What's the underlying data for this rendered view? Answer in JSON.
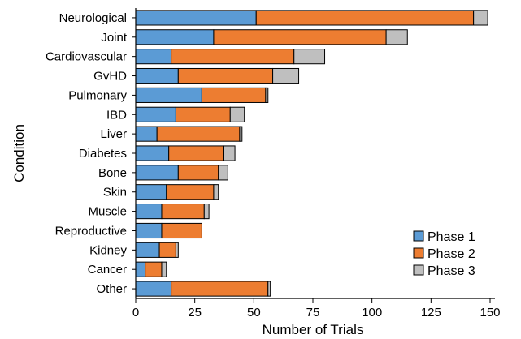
{
  "chart_data": {
    "type": "bar",
    "orientation": "horizontal",
    "stacked": true,
    "xlabel": "Number of Trials",
    "ylabel": "Condition",
    "xlim": [
      0,
      150
    ],
    "xticks": [
      0,
      25,
      50,
      75,
      100,
      125,
      150
    ],
    "grid": false,
    "legend_position": "bottom-right",
    "categories": [
      "Neurological",
      "Joint",
      "Cardiovascular",
      "GvHD",
      "Pulmonary",
      "IBD",
      "Liver",
      "Diabetes",
      "Bone",
      "Skin",
      "Muscle",
      "Reproductive",
      "Kidney",
      "Cancer",
      "Other"
    ],
    "series": [
      {
        "name": "Phase 1",
        "color": "#5b9bd5",
        "values": [
          51,
          33,
          15,
          18,
          28,
          17,
          9,
          14,
          18,
          13,
          11,
          11,
          10,
          4,
          15
        ]
      },
      {
        "name": "Phase 2",
        "color": "#ed7d31",
        "values": [
          92,
          73,
          52,
          40,
          27,
          23,
          35,
          23,
          17,
          20,
          18,
          17,
          7,
          7,
          41
        ]
      },
      {
        "name": "Phase 3",
        "color": "#bfbfbf",
        "values": [
          6,
          9,
          13,
          11,
          1,
          6,
          1,
          5,
          4,
          2,
          2,
          0,
          1,
          2,
          1
        ]
      }
    ]
  }
}
